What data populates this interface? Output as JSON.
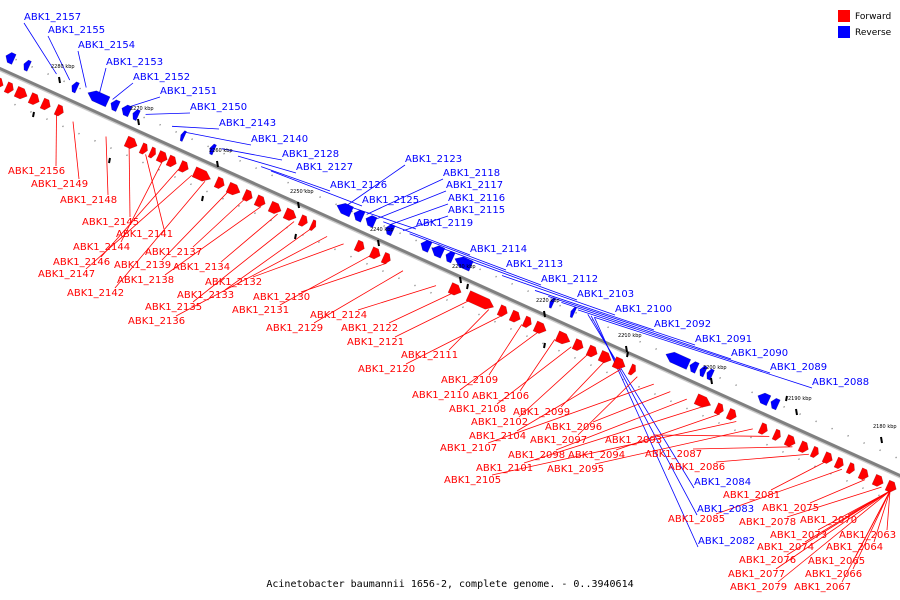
{
  "title": "Acinetobacter baumannii 1656-2, complete genome. - 0..3940614",
  "colors": {
    "forward": "#ff0000",
    "reverse": "#0000ff",
    "backbone": "#808080"
  },
  "legend": [
    {
      "label": "Forward",
      "color": "#ff0000"
    },
    {
      "label": "Reverse",
      "color": "#0000ff"
    }
  ],
  "ruler_ticks": [
    "2180 kbp",
    "2190 kbp",
    "2200 kbp",
    "2210 kbp",
    "2220 kbp",
    "2230 kbp",
    "2240 kbp",
    "2250 kbp",
    "2260 kbp",
    "2270 kbp",
    "2280 kbp"
  ],
  "reverse_genes": [
    "ABK1_2157",
    "ABK1_2155",
    "ABK1_2154",
    "ABK1_2153",
    "ABK1_2152",
    "ABK1_2151",
    "ABK1_2150",
    "ABK1_2143",
    "ABK1_2140",
    "ABK1_2128",
    "ABK1_2127",
    "ABK1_2126",
    "ABK1_2125",
    "ABK1_2123",
    "ABK1_2118",
    "ABK1_2117",
    "ABK1_2116",
    "ABK1_2115",
    "ABK1_2119",
    "ABK1_2114",
    "ABK1_2113",
    "ABK1_2112",
    "ABK1_2103",
    "ABK1_2100",
    "ABK1_2092",
    "ABK1_2091",
    "ABK1_2090",
    "ABK1_2089",
    "ABK1_2088",
    "ABK1_2084",
    "ABK1_2083",
    "ABK1_2082"
  ],
  "forward_genes": [
    "ABK1_2156",
    "ABK1_2149",
    "ABK1_2148",
    "ABK1_2145",
    "ABK1_2141",
    "ABK1_2144",
    "ABK1_2146",
    "ABK1_2147",
    "ABK1_2142",
    "ABK1_2139",
    "ABK1_2137",
    "ABK1_2138",
    "ABK1_2134",
    "ABK1_2135",
    "ABK1_2133",
    "ABK1_2136",
    "ABK1_2132",
    "ABK1_2131",
    "ABK1_2130",
    "ABK1_2129",
    "ABK1_2124",
    "ABK1_2122",
    "ABK1_2121",
    "ABK1_2111",
    "ABK1_2120",
    "ABK1_2109",
    "ABK1_2110",
    "ABK1_2106",
    "ABK1_2108",
    "ABK1_2102",
    "ABK1_2099",
    "ABK1_2104",
    "ABK1_2097",
    "ABK1_2107",
    "ABK1_2096",
    "ABK1_2098",
    "ABK1_2101",
    "ABK1_2094",
    "ABK1_2105",
    "ABK1_2095",
    "ABK1_2093",
    "ABK1_2087",
    "ABK1_2086",
    "ABK1_2081",
    "ABK1_2085",
    "ABK1_2075",
    "ABK1_2078",
    "ABK1_2073",
    "ABK1_2070",
    "ABK1_2074",
    "ABK1_2076",
    "ABK1_2063",
    "ABK1_2064",
    "ABK1_2065",
    "ABK1_2077",
    "ABK1_2066",
    "ABK1_2079",
    "ABK1_2067"
  ]
}
